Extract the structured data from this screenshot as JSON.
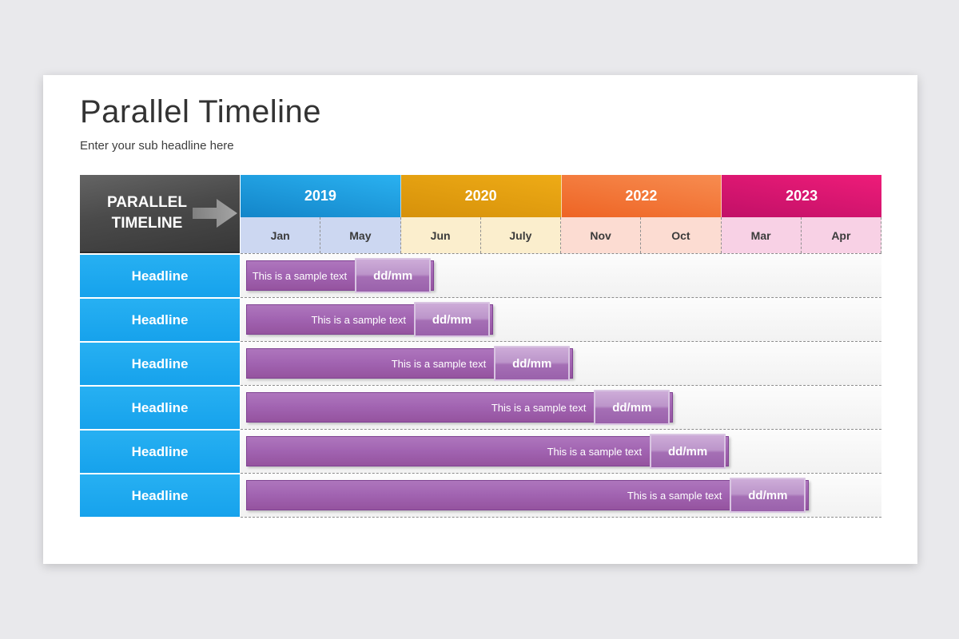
{
  "slide": {
    "title": "Parallel Timeline",
    "subtitle": "Enter your sub headline here"
  },
  "timeline": {
    "corner": {
      "label": "PARALLEL TIMELINE",
      "arrow_icon": "arrow-right",
      "arrow_color": "#a9a9a9"
    },
    "years": [
      {
        "label": "2019",
        "color_top": "#2ab1f0",
        "color_bottom": "#1385c9",
        "month_bg": "#ccd7f1",
        "months": [
          "Jan",
          "May"
        ]
      },
      {
        "label": "2020",
        "color_top": "#eeab16",
        "color_bottom": "#d6910a",
        "month_bg": "#fbeecd",
        "months": [
          "Jun",
          "July"
        ]
      },
      {
        "label": "2022",
        "color_top": "#f78c50",
        "color_bottom": "#ee6424",
        "month_bg": "#fcdcd2",
        "months": [
          "Nov",
          "Oct"
        ]
      },
      {
        "label": "2023",
        "color_top": "#ee1c79",
        "color_bottom": "#c11067",
        "month_bg": "#f8d1e5",
        "months": [
          "Mar",
          "Apr"
        ]
      }
    ],
    "headline_color": "#1daaf1",
    "bar_color": "#a163b1",
    "badge_color": "#b288c3",
    "rows": [
      {
        "headline": "Headline",
        "bar_label": "This is a sample text",
        "date": "dd/mm",
        "bar_start_pct": 0.9,
        "bar_end_pct": 30.2
      },
      {
        "headline": "Headline",
        "bar_label": "This is a sample text",
        "date": "dd/mm",
        "bar_start_pct": 0.9,
        "bar_end_pct": 39.4
      },
      {
        "headline": "Headline",
        "bar_label": "This is a sample text",
        "date": "dd/mm",
        "bar_start_pct": 0.9,
        "bar_end_pct": 51.9
      },
      {
        "headline": "Headline",
        "bar_label": "This is a sample text",
        "date": "dd/mm",
        "bar_start_pct": 0.9,
        "bar_end_pct": 67.5
      },
      {
        "headline": "Headline",
        "bar_label": "This is a sample text",
        "date": "dd/mm",
        "bar_start_pct": 0.9,
        "bar_end_pct": 76.2
      },
      {
        "headline": "Headline",
        "bar_label": "This is a sample text",
        "date": "dd/mm",
        "bar_start_pct": 0.9,
        "bar_end_pct": 88.7
      }
    ],
    "grid": {
      "year_boundaries_pct": [
        25,
        50,
        75,
        100
      ]
    }
  }
}
